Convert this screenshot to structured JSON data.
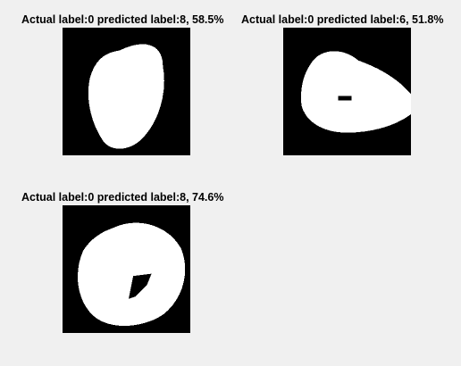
{
  "figure": {
    "background": "#f0f0f0",
    "panels": [
      {
        "title": "Actual label:0 predicted label:8, 58.5%",
        "actual_label": 0,
        "predicted_label": 8,
        "confidence_percent": 58.5,
        "image": "mnist-digit-0-oval"
      },
      {
        "title": "Actual label:0 predicted label:6, 51.8%",
        "actual_label": 0,
        "predicted_label": 6,
        "confidence_percent": 51.8,
        "image": "mnist-digit-0-blob"
      },
      {
        "title": "Actual label:0 predicted label:8, 74.6%",
        "actual_label": 0,
        "predicted_label": 8,
        "confidence_percent": 74.6,
        "image": "mnist-digit-0-ring"
      }
    ]
  }
}
